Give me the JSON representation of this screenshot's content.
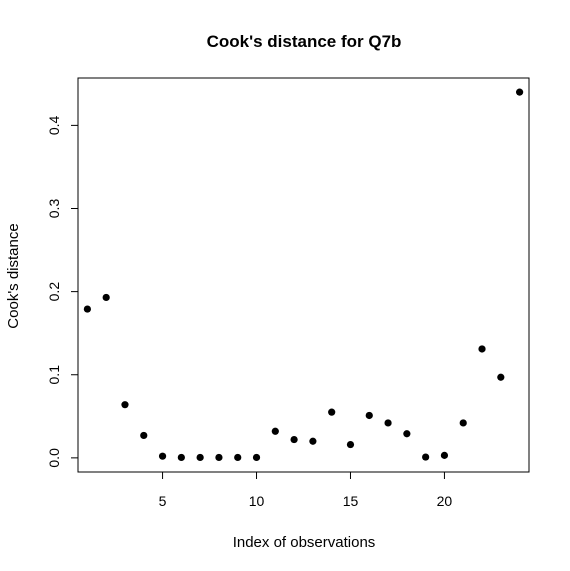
{
  "chart_data": {
    "type": "scatter",
    "title": "Cook's distance for Q7b",
    "xlabel": "Index of observations",
    "ylabel": "Cook's distance",
    "x": [
      1,
      2,
      3,
      4,
      5,
      6,
      7,
      8,
      9,
      10,
      11,
      12,
      13,
      14,
      15,
      16,
      17,
      18,
      19,
      20,
      21,
      22,
      23,
      24
    ],
    "y": [
      0.179,
      0.193,
      0.064,
      0.027,
      0.002,
      0.0005,
      0.0005,
      0.0005,
      0.0005,
      0.0005,
      0.032,
      0.022,
      0.02,
      0.055,
      0.016,
      0.051,
      0.042,
      0.029,
      0.001,
      0.003,
      0.042,
      0.131,
      0.097,
      0.44
    ],
    "xlim": [
      0.5,
      24.5
    ],
    "ylim": [
      -0.017,
      0.457
    ],
    "x_ticks": [
      5,
      10,
      15,
      20
    ],
    "y_ticks": [
      0.0,
      0.1,
      0.2,
      0.3,
      0.4
    ],
    "x_tick_labels": [
      "5",
      "10",
      "15",
      "20"
    ],
    "y_tick_labels": [
      "0.0",
      "0.1",
      "0.2",
      "0.3",
      "0.4"
    ],
    "grid": false,
    "point_color": "#000000"
  }
}
